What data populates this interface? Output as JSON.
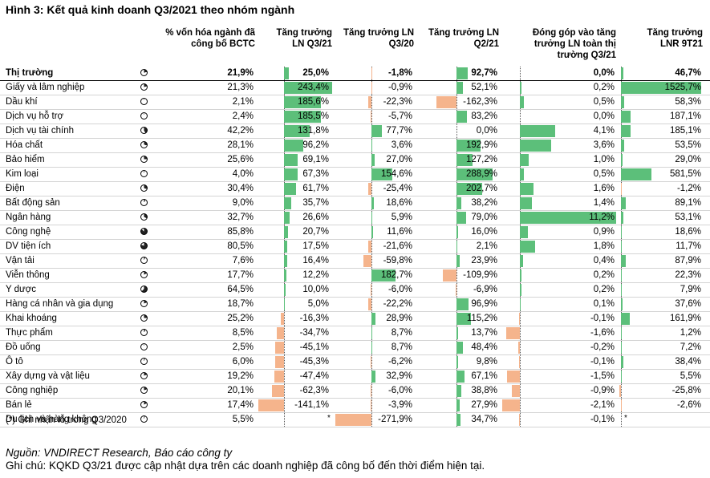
{
  "title": "Hình 3: Kết quả kinh doanh Q3/2021 theo nhóm ngành",
  "headers": {
    "cap": [
      "% vốn hóa ngành đã",
      "công bố BCTC"
    ],
    "q321": [
      "Tăng trưởng",
      "LN Q3/21"
    ],
    "q320": [
      "Tăng trưởng LN",
      "Q3/20"
    ],
    "q221": [
      "Tăng trưởng LN",
      "Q2/21"
    ],
    "contrib": [
      "Đóng góp vào tăng",
      "trưởng LN toàn thị",
      "trường Q3/21"
    ],
    "lnr": [
      "Tăng trưởng",
      "LNR 9T21"
    ]
  },
  "colors": {
    "positive": "#5cbf7a",
    "negative": "#f5b48c"
  },
  "rows": [
    {
      "name": "Thị trường",
      "cap": "21,9%",
      "cap_frac": 0.219,
      "q321": "25,0%",
      "q321_val": 25.0,
      "q320": "-1,8%",
      "q320_val": -1.8,
      "q221": "92,7%",
      "q221_val": 92.7,
      "contrib": "0,0%",
      "contrib_val": 0.0,
      "lnr": "46,7%",
      "lnr_val": 46.7
    },
    {
      "name": "Giấy và lâm nghiệp",
      "cap": "21,3%",
      "cap_frac": 0.213,
      "q321": "243,4%",
      "q321_val": 243.4,
      "q320": "-0,9%",
      "q320_val": -0.9,
      "q221": "52,1%",
      "q221_val": 52.1,
      "contrib": "0,2%",
      "contrib_val": 0.2,
      "lnr": "1525,7%",
      "lnr_val": 1525.7
    },
    {
      "name": "Dầu khí",
      "cap": "2,1%",
      "cap_frac": 0.021,
      "q321": "185,6%",
      "q321_val": 185.6,
      "q320": "-22,3%",
      "q320_val": -22.3,
      "q221": "-162,3%",
      "q221_val": -162.3,
      "contrib": "0,5%",
      "contrib_val": 0.5,
      "lnr": "58,3%",
      "lnr_val": 58.3
    },
    {
      "name": "Dịch vụ hỗ trợ",
      "cap": "2,4%",
      "cap_frac": 0.024,
      "q321": "185,5%",
      "q321_val": 185.5,
      "q320": "-5,7%",
      "q320_val": -5.7,
      "q221": "83,2%",
      "q221_val": 83.2,
      "contrib": "0,0%",
      "contrib_val": 0.0,
      "lnr": "187,1%",
      "lnr_val": 187.1
    },
    {
      "name": "Dịch vụ tài chính",
      "cap": "42,2%",
      "cap_frac": 0.422,
      "q321": "131,8%",
      "q321_val": 131.8,
      "q320": "77,7%",
      "q320_val": 77.7,
      "q221": "0,0%",
      "q221_val": 0.0,
      "contrib": "4,1%",
      "contrib_val": 4.1,
      "lnr": "185,1%",
      "lnr_val": 185.1
    },
    {
      "name": "Hóa chất",
      "cap": "28,1%",
      "cap_frac": 0.281,
      "q321": "96,2%",
      "q321_val": 96.2,
      "q320": "3,6%",
      "q320_val": 3.6,
      "q221": "192,9%",
      "q221_val": 192.9,
      "contrib": "3,6%",
      "contrib_val": 3.6,
      "lnr": "53,5%",
      "lnr_val": 53.5
    },
    {
      "name": "Bảo hiểm",
      "cap": "25,6%",
      "cap_frac": 0.256,
      "q321": "69,1%",
      "q321_val": 69.1,
      "q320": "27,0%",
      "q320_val": 27.0,
      "q221": "127,2%",
      "q221_val": 127.2,
      "contrib": "1,0%",
      "contrib_val": 1.0,
      "lnr": "29,0%",
      "lnr_val": 29.0
    },
    {
      "name": "Kim loại",
      "cap": "4,0%",
      "cap_frac": 0.04,
      "q321": "67,3%",
      "q321_val": 67.3,
      "q320": "154,6%",
      "q320_val": 154.6,
      "q221": "288,9%",
      "q221_val": 288.9,
      "contrib": "0,5%",
      "contrib_val": 0.5,
      "lnr": "581,5%",
      "lnr_val": 581.5
    },
    {
      "name": "Điện",
      "cap": "30,4%",
      "cap_frac": 0.304,
      "q321": "61,7%",
      "q321_val": 61.7,
      "q320": "-25,4%",
      "q320_val": -25.4,
      "q221": "202,7%",
      "q221_val": 202.7,
      "contrib": "1,6%",
      "contrib_val": 1.6,
      "lnr": "-1,2%",
      "lnr_val": -1.2
    },
    {
      "name": "Bất động sản",
      "cap": "9,0%",
      "cap_frac": 0.09,
      "q321": "35,7%",
      "q321_val": 35.7,
      "q320": "18,6%",
      "q320_val": 18.6,
      "q221": "38,2%",
      "q221_val": 38.2,
      "contrib": "1,4%",
      "contrib_val": 1.4,
      "lnr": "89,1%",
      "lnr_val": 89.1
    },
    {
      "name": "Ngân hàng",
      "cap": "32,7%",
      "cap_frac": 0.327,
      "q321": "26,6%",
      "q321_val": 26.6,
      "q320": "5,9%",
      "q320_val": 5.9,
      "q221": "79,0%",
      "q221_val": 79.0,
      "contrib": "11,2%",
      "contrib_val": 11.2,
      "lnr": "53,1%",
      "lnr_val": 53.1
    },
    {
      "name": "Công nghệ",
      "cap": "85,8%",
      "cap_frac": 0.858,
      "q321": "20,7%",
      "q321_val": 20.7,
      "q320": "11,6%",
      "q320_val": 11.6,
      "q221": "16,0%",
      "q221_val": 16.0,
      "contrib": "0,9%",
      "contrib_val": 0.9,
      "lnr": "18,6%",
      "lnr_val": 18.6
    },
    {
      "name": "DV tiện ích",
      "cap": "80,5%",
      "cap_frac": 0.805,
      "q321": "17,5%",
      "q321_val": 17.5,
      "q320": "-21,6%",
      "q320_val": -21.6,
      "q221": "2,1%",
      "q221_val": 2.1,
      "contrib": "1,8%",
      "contrib_val": 1.8,
      "lnr": "11,7%",
      "lnr_val": 11.7
    },
    {
      "name": "Vận tải",
      "cap": "7,6%",
      "cap_frac": 0.076,
      "q321": "16,4%",
      "q321_val": 16.4,
      "q320": "-59,8%",
      "q320_val": -59.8,
      "q221": "23,9%",
      "q221_val": 23.9,
      "contrib": "0,4%",
      "contrib_val": 0.4,
      "lnr": "87,9%",
      "lnr_val": 87.9
    },
    {
      "name": "Viễn thông",
      "cap": "17,7%",
      "cap_frac": 0.177,
      "q321": "12,2%",
      "q321_val": 12.2,
      "q320": "182,7%",
      "q320_val": 182.7,
      "q221": "-109,9%",
      "q221_val": -109.9,
      "contrib": "0,2%",
      "contrib_val": 0.2,
      "lnr": "22,3%",
      "lnr_val": 22.3
    },
    {
      "name": "Y dược",
      "cap": "64,5%",
      "cap_frac": 0.645,
      "q321": "10,0%",
      "q321_val": 10.0,
      "q320": "-6,0%",
      "q320_val": -6.0,
      "q221": "-6,9%",
      "q221_val": -6.9,
      "contrib": "0,2%",
      "contrib_val": 0.2,
      "lnr": "7,9%",
      "lnr_val": 7.9
    },
    {
      "name": "Hàng cá nhân và gia dụng",
      "cap": "18,7%",
      "cap_frac": 0.187,
      "q321": "5,0%",
      "q321_val": 5.0,
      "q320": "-22,2%",
      "q320_val": -22.2,
      "q221": "96,9%",
      "q221_val": 96.9,
      "contrib": "0,1%",
      "contrib_val": 0.1,
      "lnr": "37,6%",
      "lnr_val": 37.6
    },
    {
      "name": "Khai khoáng",
      "cap": "25,2%",
      "cap_frac": 0.252,
      "q321": "-16,3%",
      "q321_val": -16.3,
      "q320": "28,9%",
      "q320_val": 28.9,
      "q221": "115,2%",
      "q221_val": 115.2,
      "contrib": "-0,1%",
      "contrib_val": -0.1,
      "lnr": "161,9%",
      "lnr_val": 161.9
    },
    {
      "name": "Thực phẩm",
      "cap": "8,5%",
      "cap_frac": 0.085,
      "q321": "-34,7%",
      "q321_val": -34.7,
      "q320": "8,7%",
      "q320_val": 8.7,
      "q221": "13,7%",
      "q221_val": 13.7,
      "contrib": "-1,6%",
      "contrib_val": -1.6,
      "lnr": "1,2%",
      "lnr_val": 1.2
    },
    {
      "name": "Đồ uống",
      "cap": "2,5%",
      "cap_frac": 0.025,
      "q321": "-45,1%",
      "q321_val": -45.1,
      "q320": "8,7%",
      "q320_val": 8.7,
      "q221": "48,4%",
      "q221_val": 48.4,
      "contrib": "-0,2%",
      "contrib_val": -0.2,
      "lnr": "7,2%",
      "lnr_val": 7.2
    },
    {
      "name": "Ô tô",
      "cap": "6,0%",
      "cap_frac": 0.06,
      "q321": "-45,3%",
      "q321_val": -45.3,
      "q320": "-6,2%",
      "q320_val": -6.2,
      "q221": "9,8%",
      "q221_val": 9.8,
      "contrib": "-0,1%",
      "contrib_val": -0.1,
      "lnr": "38,4%",
      "lnr_val": 38.4
    },
    {
      "name": "Xây dựng và vật liệu",
      "cap": "19,2%",
      "cap_frac": 0.192,
      "q321": "-47,4%",
      "q321_val": -47.4,
      "q320": "32,9%",
      "q320_val": 32.9,
      "q221": "67,1%",
      "q221_val": 67.1,
      "contrib": "-1,5%",
      "contrib_val": -1.5,
      "lnr": "5,5%",
      "lnr_val": 5.5
    },
    {
      "name": "Công nghiệp",
      "cap": "20,1%",
      "cap_frac": 0.201,
      "q321": "-62,3%",
      "q321_val": -62.3,
      "q320": "-6,0%",
      "q320_val": -6.0,
      "q221": "38,8%",
      "q221_val": 38.8,
      "contrib": "-0,9%",
      "contrib_val": -0.9,
      "lnr": "-25,8%",
      "lnr_val": -25.8
    },
    {
      "name": "Bán lẻ",
      "cap": "17,4%",
      "cap_frac": 0.174,
      "q321": "-141,1%",
      "q321_val": -141.1,
      "q320": "-3,9%",
      "q320_val": -3.9,
      "q221": "27,9%",
      "q221_val": 27.9,
      "contrib": "-2,1%",
      "contrib_val": -2.1,
      "lnr": "-2,6%",
      "lnr_val": -2.6
    },
    {
      "name": "Du lịch và hàng không",
      "cap": "5,5%",
      "cap_frac": 0.055,
      "q321": "*",
      "q321_val": null,
      "q320": "-271,9%",
      "q320_val": -271.9,
      "q221": "34,7%",
      "q221_val": 34.7,
      "contrib": "-0,1%",
      "contrib_val": -0.1,
      "lnr": "*",
      "lnr_val": null
    }
  ],
  "footnote": "(*) Ghi nhận lỗ trong Q3/2020",
  "source": "Nguồn: VNDIRECT Research, Báo cáo công ty",
  "note": "Ghi chú: KQKD Q3/21 được cập nhật dựa trên các doanh nghiệp đã công bố đến thời điểm hiện tại."
}
